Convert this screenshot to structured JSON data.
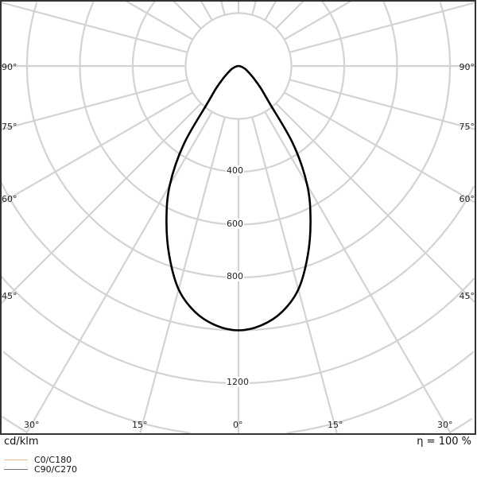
{
  "chart_data": {
    "type": "polar",
    "unit_label": "cd/klm",
    "efficiency_label": "η = 100 %",
    "radial_ticks": [
      200,
      400,
      600,
      800,
      1000,
      1200,
      1400,
      1600
    ],
    "radial_tick_labels": [
      "400",
      "600",
      "800",
      "1200"
    ],
    "angle_tick_labels": {
      "left": [
        "90°",
        "75°",
        "60°",
        "45°"
      ],
      "right": [
        "90°",
        "75°",
        "60°",
        "45°"
      ],
      "bottom": [
        "30°",
        "15°",
        "0°",
        "15°",
        "30°"
      ]
    },
    "angles_deg": [
      0,
      5,
      10,
      15,
      20,
      25,
      30,
      35,
      40,
      45,
      50,
      55,
      60,
      65,
      70,
      75,
      80,
      85,
      90
    ],
    "intensity": [
      1000,
      985,
      945,
      875,
      765,
      645,
      520,
      360,
      180,
      120,
      80,
      55,
      40,
      30,
      20,
      12,
      6,
      3,
      0
    ],
    "curve_color": "#000000",
    "grid": true,
    "series": [
      {
        "name": "C0/C180",
        "color": "#f5b98a"
      },
      {
        "name": "C90/C270",
        "color": "#777777"
      }
    ],
    "legend_position": "bottom-left"
  }
}
